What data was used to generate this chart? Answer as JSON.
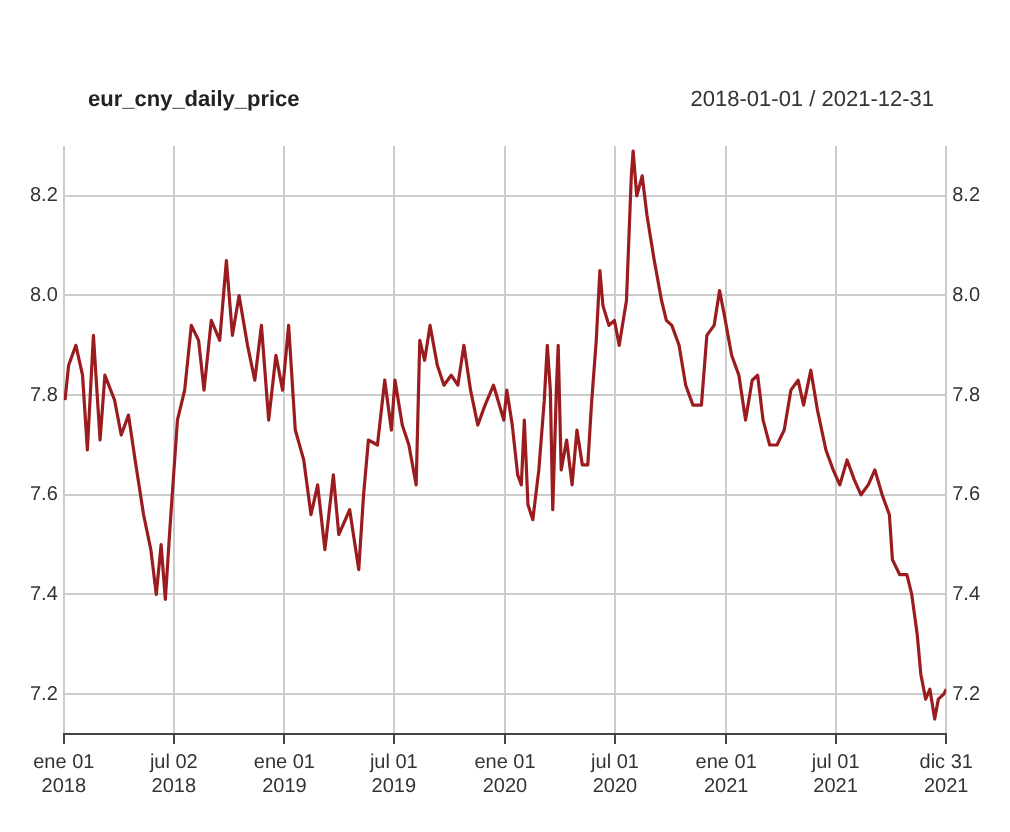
{
  "chart_data": {
    "type": "line",
    "title": "eur_cny_daily_price",
    "subtitle": "2018-01-01 / 2021-12-31",
    "xlim": [
      "2018-01-01",
      "2021-12-31"
    ],
    "xticks": [
      {
        "value": "2018-01-01",
        "label": "ene 01\n2018"
      },
      {
        "value": "2018-07-02",
        "label": "jul 02\n2018"
      },
      {
        "value": "2019-01-01",
        "label": "ene 01\n2019"
      },
      {
        "value": "2019-07-01",
        "label": "jul 01\n2019"
      },
      {
        "value": "2020-01-01",
        "label": "ene 01\n2020"
      },
      {
        "value": "2020-07-01",
        "label": "jul 01\n2020"
      },
      {
        "value": "2021-01-01",
        "label": "ene 01\n2021"
      },
      {
        "value": "2021-07-01",
        "label": "jul 01\n2021"
      },
      {
        "value": "2021-12-31",
        "label": "dic 31\n2021"
      }
    ],
    "ylim": [
      7.12,
      8.3
    ],
    "yticks": [
      {
        "value": 7.2,
        "label": "7.2"
      },
      {
        "value": 7.4,
        "label": "7.4"
      },
      {
        "value": 7.6,
        "label": "7.6"
      },
      {
        "value": 7.8,
        "label": "7.8"
      },
      {
        "value": 8.0,
        "label": "8.0"
      },
      {
        "value": 8.2,
        "label": "8.2"
      }
    ],
    "y2lim": [
      7.12,
      8.3
    ],
    "y2ticks": [
      {
        "value": 7.2,
        "label": "7.2"
      },
      {
        "value": 7.4,
        "label": "7.4"
      },
      {
        "value": 7.6,
        "label": "7.6"
      },
      {
        "value": 7.8,
        "label": "7.8"
      },
      {
        "value": 8.0,
        "label": "8.0"
      },
      {
        "value": 8.2,
        "label": "8.2"
      }
    ],
    "grid": true,
    "marker": "none",
    "line_style": "solid",
    "x": [
      "2018-01-03",
      "2018-01-09",
      "2018-01-21",
      "2018-02-01",
      "2018-02-09",
      "2018-02-19",
      "2018-03-02",
      "2018-03-10",
      "2018-03-26",
      "2018-04-06",
      "2018-04-18",
      "2018-04-29",
      "2018-05-13",
      "2018-05-25",
      "2018-06-03",
      "2018-06-11",
      "2018-06-18",
      "2018-06-26",
      "2018-07-08",
      "2018-07-20",
      "2018-07-31",
      "2018-08-12",
      "2018-08-21",
      "2018-09-02",
      "2018-09-16",
      "2018-09-27",
      "2018-10-07",
      "2018-10-18",
      "2018-11-01",
      "2018-11-13",
      "2018-11-24",
      "2018-12-06",
      "2018-12-18",
      "2018-12-29",
      "2019-01-08",
      "2019-01-19",
      "2019-02-02",
      "2019-02-14",
      "2019-02-25",
      "2019-03-09",
      "2019-03-23",
      "2019-04-01",
      "2019-04-19",
      "2019-05-04",
      "2019-05-12",
      "2019-05-20",
      "2019-06-04",
      "2019-06-16",
      "2019-06-27",
      "2019-07-03",
      "2019-07-15",
      "2019-07-26",
      "2019-08-07",
      "2019-08-13",
      "2019-08-21",
      "2019-08-30",
      "2019-09-11",
      "2019-09-22",
      "2019-10-04",
      "2019-10-15",
      "2019-10-25",
      "2019-11-05",
      "2019-11-17",
      "2019-11-29",
      "2019-12-13",
      "2019-12-30",
      "2020-01-04",
      "2020-01-13",
      "2020-01-22",
      "2020-01-28",
      "2020-02-02",
      "2020-02-08",
      "2020-02-16",
      "2020-02-26",
      "2020-03-06",
      "2020-03-11",
      "2020-03-16",
      "2020-03-20",
      "2020-03-26",
      "2020-03-29",
      "2020-04-03",
      "2020-04-12",
      "2020-04-21",
      "2020-04-29",
      "2020-05-08",
      "2020-05-17",
      "2020-05-23",
      "2020-05-31",
      "2020-06-06",
      "2020-06-11",
      "2020-06-21",
      "2020-06-30",
      "2020-07-08",
      "2020-07-20",
      "2020-07-28",
      "2020-07-31",
      "2020-08-06",
      "2020-08-15",
      "2020-08-23",
      "2020-09-04",
      "2020-09-16",
      "2020-09-24",
      "2020-10-03",
      "2020-10-15",
      "2020-10-26",
      "2020-11-07",
      "2020-11-21",
      "2020-11-30",
      "2020-12-12",
      "2020-12-21",
      "2020-12-29",
      "2021-01-10",
      "2021-01-22",
      "2021-02-02",
      "2021-02-13",
      "2021-02-22",
      "2021-03-03",
      "2021-03-14",
      "2021-03-26",
      "2021-04-07",
      "2021-04-18",
      "2021-04-30",
      "2021-05-09",
      "2021-05-21",
      "2021-06-01",
      "2021-06-15",
      "2021-06-27",
      "2021-07-08",
      "2021-07-20",
      "2021-08-01",
      "2021-08-12",
      "2021-08-24",
      "2021-09-04",
      "2021-09-16",
      "2021-09-28",
      "2021-10-03",
      "2021-10-15",
      "2021-10-27",
      "2021-11-04",
      "2021-11-13",
      "2021-11-19",
      "2021-11-27",
      "2021-12-04",
      "2021-12-12",
      "2021-12-18",
      "2021-12-27",
      "2021-12-31"
    ],
    "series": [
      {
        "color": "#9b1c1f",
        "values": [
          7.79,
          7.86,
          7.9,
          7.84,
          7.69,
          7.92,
          7.71,
          7.84,
          7.79,
          7.72,
          7.76,
          7.67,
          7.56,
          7.49,
          7.4,
          7.5,
          7.39,
          7.54,
          7.75,
          7.81,
          7.94,
          7.91,
          7.81,
          7.95,
          7.91,
          8.07,
          7.92,
          8.0,
          7.9,
          7.83,
          7.94,
          7.75,
          7.88,
          7.81,
          7.94,
          7.73,
          7.67,
          7.56,
          7.62,
          7.49,
          7.64,
          7.52,
          7.57,
          7.45,
          7.6,
          7.71,
          7.7,
          7.83,
          7.73,
          7.83,
          7.74,
          7.7,
          7.62,
          7.91,
          7.87,
          7.94,
          7.86,
          7.82,
          7.84,
          7.82,
          7.9,
          7.81,
          7.74,
          7.78,
          7.82,
          7.75,
          7.81,
          7.74,
          7.64,
          7.62,
          7.75,
          7.58,
          7.55,
          7.65,
          7.79,
          7.9,
          7.81,
          7.57,
          7.81,
          7.9,
          7.65,
          7.71,
          7.62,
          7.73,
          7.66,
          7.66,
          7.78,
          7.91,
          8.05,
          7.98,
          7.94,
          7.95,
          7.9,
          7.99,
          8.24,
          8.29,
          8.2,
          8.24,
          8.16,
          8.07,
          7.99,
          7.95,
          7.94,
          7.9,
          7.82,
          7.78,
          7.78,
          7.92,
          7.94,
          8.01,
          7.96,
          7.88,
          7.84,
          7.75,
          7.83,
          7.84,
          7.75,
          7.7,
          7.7,
          7.73,
          7.81,
          7.83,
          7.78,
          7.85,
          7.77,
          7.69,
          7.65,
          7.62,
          7.67,
          7.63,
          7.6,
          7.62,
          7.65,
          7.6,
          7.56,
          7.47,
          7.44,
          7.44,
          7.4,
          7.32,
          7.24,
          7.19,
          7.21,
          7.15,
          7.19,
          7.2,
          7.21
        ]
      }
    ]
  }
}
